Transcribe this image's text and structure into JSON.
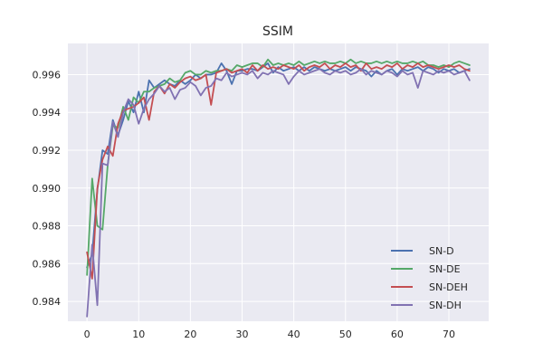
{
  "chart_data": {
    "type": "line",
    "title": "SSIM",
    "xlabel": "",
    "ylabel": "",
    "xlim": [
      -3.7,
      77.7
    ],
    "ylim": [
      0.98295,
      0.99765
    ],
    "xticks": [
      0,
      10,
      20,
      30,
      40,
      50,
      60,
      70
    ],
    "xtick_labels": [
      "0",
      "10",
      "20",
      "30",
      "40",
      "50",
      "60",
      "70"
    ],
    "yticks": [
      0.984,
      0.986,
      0.988,
      0.99,
      0.992,
      0.994,
      0.996
    ],
    "ytick_labels": [
      "0.984",
      "0.986",
      "0.988",
      "0.990",
      "0.992",
      "0.994",
      "0.996"
    ],
    "grid": true,
    "legend_position": "lower-right",
    "background": "#eaeaf2",
    "series": [
      {
        "name": "SN-D",
        "color": "#4c72b0",
        "values": [
          0.9858,
          0.9865,
          0.9899,
          0.992,
          0.9918,
          0.9936,
          0.9928,
          0.9936,
          0.9946,
          0.994,
          0.9951,
          0.994,
          0.9957,
          0.9953,
          0.9955,
          0.9957,
          0.9955,
          0.9954,
          0.9957,
          0.9955,
          0.9957,
          0.996,
          0.9958,
          0.996,
          0.996,
          0.9961,
          0.9966,
          0.9962,
          0.9955,
          0.9962,
          0.9962,
          0.9963,
          0.9963,
          0.9962,
          0.9964,
          0.9966,
          0.9961,
          0.9964,
          0.9962,
          0.9963,
          0.9964,
          0.9962,
          0.9964,
          0.9962,
          0.9964,
          0.9963,
          0.9962,
          0.9963,
          0.9962,
          0.9963,
          0.9964,
          0.9962,
          0.9964,
          0.9963,
          0.9962,
          0.9959,
          0.9962,
          0.996,
          0.9962,
          0.9963,
          0.996,
          0.9963,
          0.9962,
          0.9963,
          0.9964,
          0.9962,
          0.9964,
          0.9963,
          0.9961,
          0.9963,
          0.9962,
          0.9963,
          0.9961,
          0.9962,
          0.9963
        ]
      },
      {
        "name": "SN-DE",
        "color": "#55a868",
        "values": [
          0.9854,
          0.9905,
          0.988,
          0.9878,
          0.9912,
          0.9933,
          0.9932,
          0.9943,
          0.9936,
          0.9948,
          0.9945,
          0.9951,
          0.9951,
          0.9953,
          0.9954,
          0.9955,
          0.9958,
          0.9956,
          0.9957,
          0.9961,
          0.9962,
          0.996,
          0.996,
          0.9962,
          0.9961,
          0.9962,
          0.9962,
          0.9963,
          0.9962,
          0.9965,
          0.9964,
          0.9965,
          0.9966,
          0.9966,
          0.9964,
          0.9968,
          0.9965,
          0.9966,
          0.9965,
          0.9966,
          0.9965,
          0.9967,
          0.9965,
          0.9966,
          0.9967,
          0.9966,
          0.9967,
          0.9966,
          0.9966,
          0.9967,
          0.9966,
          0.9968,
          0.9966,
          0.9967,
          0.9966,
          0.9966,
          0.9967,
          0.9966,
          0.9967,
          0.9966,
          0.9967,
          0.9966,
          0.9966,
          0.9967,
          0.9966,
          0.9967,
          0.9965,
          0.9965,
          0.9964,
          0.9965,
          0.9964,
          0.9966,
          0.9967,
          0.9966,
          0.9965
        ]
      },
      {
        "name": "SN-DEH",
        "color": "#c44e52",
        "values": [
          0.9866,
          0.9852,
          0.99,
          0.9915,
          0.9922,
          0.9917,
          0.9934,
          0.9941,
          0.9942,
          0.9943,
          0.9945,
          0.9948,
          0.9936,
          0.9951,
          0.9954,
          0.995,
          0.9955,
          0.9953,
          0.9956,
          0.9958,
          0.9959,
          0.9957,
          0.9958,
          0.996,
          0.9944,
          0.9961,
          0.9962,
          0.9963,
          0.9961,
          0.9962,
          0.9963,
          0.9961,
          0.9965,
          0.9962,
          0.9965,
          0.9963,
          0.9964,
          0.9963,
          0.9965,
          0.9964,
          0.9963,
          0.9965,
          0.9962,
          0.9964,
          0.9965,
          0.9964,
          0.9966,
          0.9963,
          0.9965,
          0.9964,
          0.9966,
          0.9964,
          0.9965,
          0.9962,
          0.9966,
          0.9963,
          0.9964,
          0.9963,
          0.9965,
          0.9964,
          0.9966,
          0.9963,
          0.9965,
          0.9964,
          0.9966,
          0.9964,
          0.9965,
          0.9964,
          0.9963,
          0.9964,
          0.9965,
          0.9964,
          0.9965,
          0.9963,
          0.9962
        ]
      },
      {
        "name": "SN-DH",
        "color": "#8172b2",
        "values": [
          0.9832,
          0.987,
          0.9838,
          0.9913,
          0.9912,
          0.9935,
          0.9927,
          0.994,
          0.9947,
          0.9944,
          0.9934,
          0.9942,
          0.9947,
          0.995,
          0.9954,
          0.9951,
          0.9953,
          0.9947,
          0.9952,
          0.9953,
          0.9956,
          0.9954,
          0.9949,
          0.9953,
          0.9954,
          0.9958,
          0.9957,
          0.9961,
          0.9959,
          0.996,
          0.9961,
          0.996,
          0.9962,
          0.9958,
          0.9961,
          0.996,
          0.9962,
          0.9961,
          0.996,
          0.9955,
          0.9959,
          0.9962,
          0.996,
          0.9961,
          0.9962,
          0.9963,
          0.9961,
          0.996,
          0.9962,
          0.9961,
          0.9962,
          0.996,
          0.9961,
          0.9963,
          0.996,
          0.9962,
          0.9961,
          0.996,
          0.9962,
          0.9961,
          0.9959,
          0.9962,
          0.996,
          0.9961,
          0.9953,
          0.9962,
          0.9961,
          0.996,
          0.9962,
          0.9961,
          0.9962,
          0.996,
          0.9961,
          0.9962,
          0.9957
        ]
      }
    ]
  }
}
